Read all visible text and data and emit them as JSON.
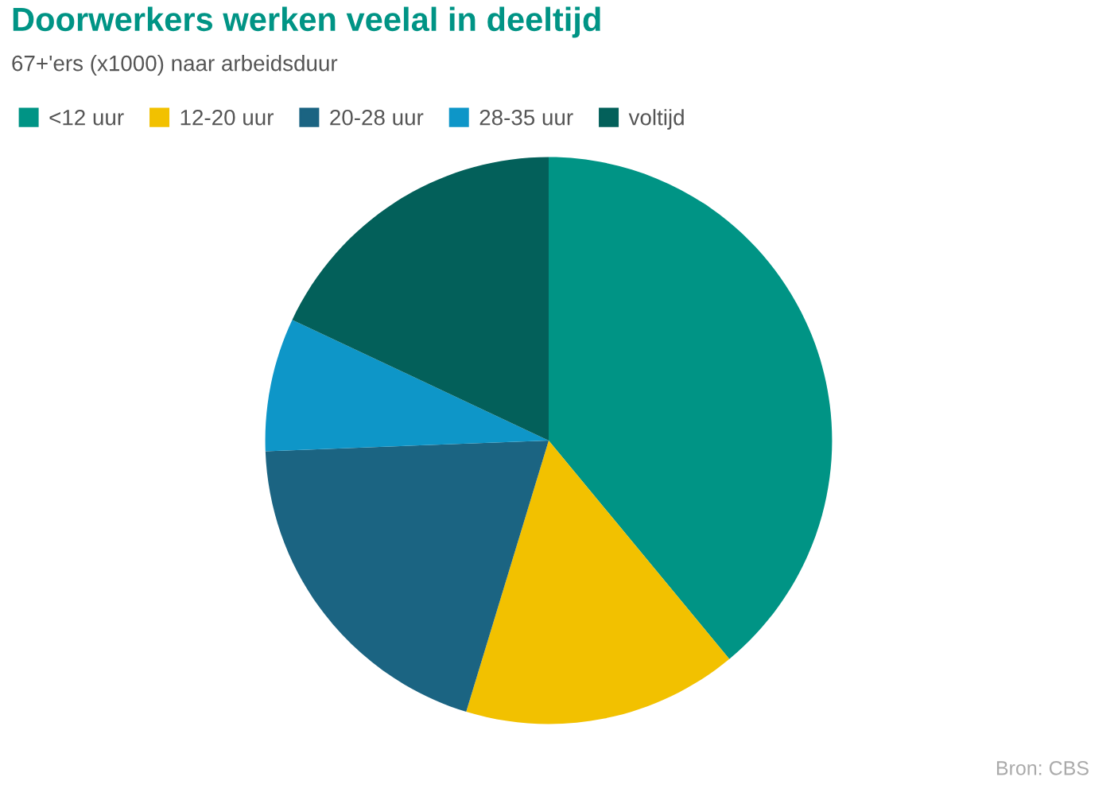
{
  "chart_data": {
    "type": "pie",
    "title": "Doorwerkers werken veelal in deeltijd",
    "subtitle": "67+'ers (x1000) naar arbeidsduur",
    "categories": [
      "<12 uur",
      "12-20 uur",
      "20-28 uur",
      "28-35 uur",
      "voltijd"
    ],
    "values": [
      39.0,
      15.7,
      19.7,
      7.6,
      18.0
    ],
    "colors": [
      "#009485",
      "#f2c100",
      "#1b6482",
      "#0e96c8",
      "#03605a"
    ],
    "legend": "top left",
    "annotations": [
      "Bron: CBS"
    ]
  }
}
